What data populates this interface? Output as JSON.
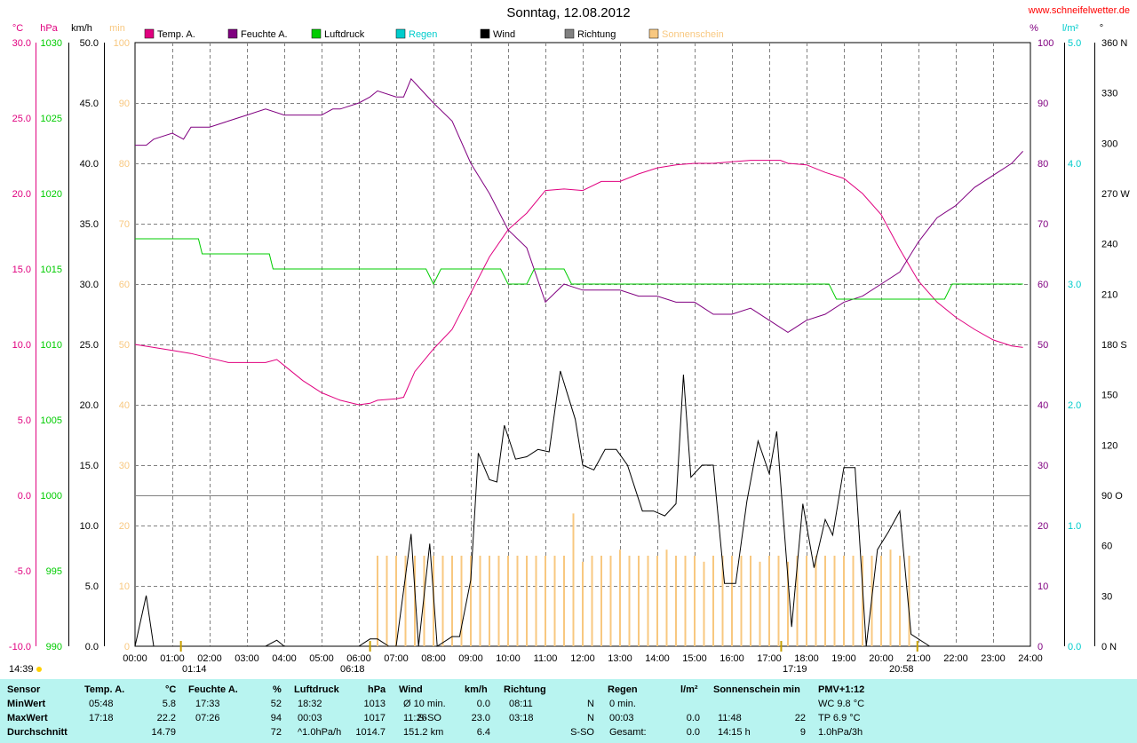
{
  "header": {
    "title": "Sonntag, 12.08.2012",
    "site": "www.schneifelwetter.de"
  },
  "colors": {
    "temp": "#e0007f",
    "hum": "#800080",
    "press": "#00cc00",
    "rain": "#00cccc",
    "wind": "#000000",
    "dir": "#808080",
    "sun": "#f8c880",
    "table_bg": "#b8f4f0"
  },
  "axes": {
    "temp": {
      "unit": "°C",
      "ticks": [
        "30.0",
        "25.0",
        "20.0",
        "15.0",
        "10.0",
        "5.0",
        "0.0",
        "-5.0",
        "-10.0"
      ]
    },
    "press": {
      "unit": "hPa",
      "ticks": [
        "1030",
        "1025",
        "1020",
        "1015",
        "1010",
        "1005",
        "1000",
        "995",
        "990"
      ]
    },
    "wind": {
      "unit": "km/h",
      "ticks": [
        "50.0",
        "45.0",
        "40.0",
        "35.0",
        "30.0",
        "25.0",
        "20.0",
        "15.0",
        "10.0",
        "5.0",
        "0.0"
      ]
    },
    "sun": {
      "unit": "min",
      "ticks": [
        "100",
        "90",
        "80",
        "70",
        "60",
        "50",
        "40",
        "30",
        "20",
        "10",
        "0"
      ]
    },
    "hum": {
      "unit": "%",
      "ticks": [
        "100",
        "90",
        "80",
        "70",
        "60",
        "50",
        "40",
        "30",
        "20",
        "10",
        "0"
      ]
    },
    "rain": {
      "unit": "l/m²",
      "ticks": [
        "5.0",
        "4.0",
        "3.0",
        "2.0",
        "1.0",
        "0.0"
      ]
    },
    "dir": {
      "unit": "°",
      "ticks": [
        "360 N",
        "330",
        "300",
        "270 W",
        "240",
        "210",
        "180 S",
        "150",
        "120",
        "90 O",
        "60",
        "30",
        "0 N"
      ]
    },
    "time": [
      "00:00",
      "01:00",
      "02:00",
      "03:00",
      "04:00",
      "05:00",
      "06:00",
      "07:00",
      "08:00",
      "09:00",
      "10:00",
      "11:00",
      "12:00",
      "13:00",
      "14:00",
      "15:00",
      "16:00",
      "17:00",
      "18:00",
      "19:00",
      "20:00",
      "21:00",
      "22:00",
      "23:00",
      "24:00"
    ]
  },
  "legend": [
    "Temp. A.",
    "Feuchte A.",
    "Luftdruck",
    "Regen",
    "Wind",
    "Richtung",
    "Sonnenschein"
  ],
  "markers": {
    "time_left": "14:39",
    "sunrise": "06:18",
    "sunset": "20:58",
    "moonrise": "01:14",
    "moonset": "17:19"
  },
  "chart_data": {
    "type": "line",
    "x_unit": "hour",
    "series": [
      {
        "name": "Temp. A.",
        "unit": "°C",
        "points": [
          [
            0,
            10.0
          ],
          [
            0.5,
            9.8
          ],
          [
            1,
            9.6
          ],
          [
            1.5,
            9.4
          ],
          [
            2,
            9.1
          ],
          [
            2.5,
            8.8
          ],
          [
            3,
            8.8
          ],
          [
            3.5,
            8.8
          ],
          [
            3.8,
            9.0
          ],
          [
            4,
            8.6
          ],
          [
            4.5,
            7.6
          ],
          [
            5,
            6.8
          ],
          [
            5.5,
            6.3
          ],
          [
            6,
            6.0
          ],
          [
            6.3,
            6.1
          ],
          [
            6.5,
            6.3
          ],
          [
            7,
            6.4
          ],
          [
            7.2,
            6.5
          ],
          [
            7.5,
            8.2
          ],
          [
            8,
            9.7
          ],
          [
            8.5,
            11.0
          ],
          [
            9,
            13.4
          ],
          [
            9.5,
            15.8
          ],
          [
            10,
            17.6
          ],
          [
            10.5,
            18.7
          ],
          [
            11,
            20.2
          ],
          [
            11.5,
            20.3
          ],
          [
            12,
            20.2
          ],
          [
            12.5,
            20.8
          ],
          [
            13,
            20.8
          ],
          [
            13.5,
            21.3
          ],
          [
            14,
            21.7
          ],
          [
            14.5,
            21.9
          ],
          [
            15,
            22.0
          ],
          [
            15.5,
            22.0
          ],
          [
            16,
            22.1
          ],
          [
            16.5,
            22.2
          ],
          [
            17,
            22.2
          ],
          [
            17.3,
            22.2
          ],
          [
            17.5,
            22.0
          ],
          [
            18,
            21.9
          ],
          [
            18.5,
            21.4
          ],
          [
            19,
            21.0
          ],
          [
            19.5,
            20.0
          ],
          [
            20,
            18.6
          ],
          [
            20.5,
            16.3
          ],
          [
            21,
            14.2
          ],
          [
            21.5,
            12.8
          ],
          [
            22,
            11.8
          ],
          [
            22.5,
            11.0
          ],
          [
            23,
            10.3
          ],
          [
            23.5,
            9.9
          ],
          [
            23.8,
            9.8
          ]
        ]
      },
      {
        "name": "Feuchte A.",
        "unit": "%",
        "points": [
          [
            0,
            83
          ],
          [
            0.3,
            83
          ],
          [
            0.5,
            84
          ],
          [
            1,
            85
          ],
          [
            1.3,
            84
          ],
          [
            1.5,
            86
          ],
          [
            2,
            86
          ],
          [
            2.5,
            87
          ],
          [
            3,
            88
          ],
          [
            3.5,
            89
          ],
          [
            4,
            88
          ],
          [
            4.5,
            88
          ],
          [
            5,
            88
          ],
          [
            5.3,
            89
          ],
          [
            5.5,
            89
          ],
          [
            6,
            90
          ],
          [
            6.3,
            91
          ],
          [
            6.5,
            92
          ],
          [
            7,
            91
          ],
          [
            7.2,
            91
          ],
          [
            7.4,
            94
          ],
          [
            7.7,
            92
          ],
          [
            8,
            90
          ],
          [
            8.5,
            87
          ],
          [
            9,
            80
          ],
          [
            9.5,
            75
          ],
          [
            10,
            69
          ],
          [
            10.5,
            66
          ],
          [
            11,
            57
          ],
          [
            11.5,
            60
          ],
          [
            12,
            59
          ],
          [
            12.5,
            59
          ],
          [
            13,
            59
          ],
          [
            13.5,
            58
          ],
          [
            14,
            58
          ],
          [
            14.5,
            57
          ],
          [
            15,
            57
          ],
          [
            15.5,
            55
          ],
          [
            16,
            55
          ],
          [
            16.5,
            56
          ],
          [
            17,
            54
          ],
          [
            17.5,
            52
          ],
          [
            18,
            54
          ],
          [
            18.5,
            55
          ],
          [
            19,
            57
          ],
          [
            19.5,
            58
          ],
          [
            20,
            60
          ],
          [
            20.5,
            62
          ],
          [
            21,
            67
          ],
          [
            21.5,
            71
          ],
          [
            22,
            73
          ],
          [
            22.5,
            76
          ],
          [
            23,
            78
          ],
          [
            23.5,
            80
          ],
          [
            23.8,
            82
          ]
        ]
      },
      {
        "name": "Luftdruck",
        "unit": "hPa",
        "points": [
          [
            0,
            1017
          ],
          [
            1.7,
            1017
          ],
          [
            1.8,
            1016
          ],
          [
            3.6,
            1016
          ],
          [
            3.7,
            1015
          ],
          [
            7.8,
            1015
          ],
          [
            8,
            1014
          ],
          [
            8.2,
            1015
          ],
          [
            9.8,
            1015
          ],
          [
            10,
            1014
          ],
          [
            10.5,
            1014
          ],
          [
            10.7,
            1015
          ],
          [
            11.5,
            1015
          ],
          [
            11.7,
            1014
          ],
          [
            18.6,
            1014
          ],
          [
            18.8,
            1013
          ],
          [
            21.7,
            1013
          ],
          [
            21.9,
            1014
          ],
          [
            23.8,
            1014
          ]
        ]
      },
      {
        "name": "Wind",
        "unit": "km/h",
        "points": [
          [
            0,
            0
          ],
          [
            0.3,
            4.2
          ],
          [
            0.5,
            0
          ],
          [
            3.5,
            0
          ],
          [
            3.8,
            0.5
          ],
          [
            4,
            0
          ],
          [
            6,
            0
          ],
          [
            6.3,
            0.6
          ],
          [
            6.5,
            0.6
          ],
          [
            6.8,
            0
          ],
          [
            7,
            0
          ],
          [
            7.4,
            9.3
          ],
          [
            7.6,
            0
          ],
          [
            7.9,
            8.5
          ],
          [
            8.1,
            0
          ],
          [
            8.5,
            0.8
          ],
          [
            8.7,
            0.8
          ],
          [
            9,
            5.5
          ],
          [
            9.2,
            16
          ],
          [
            9.5,
            13.8
          ],
          [
            9.7,
            13.6
          ],
          [
            9.9,
            18.3
          ],
          [
            10.2,
            15.5
          ],
          [
            10.5,
            15.7
          ],
          [
            10.8,
            16.3
          ],
          [
            11.1,
            16.1
          ],
          [
            11.4,
            22.8
          ],
          [
            11.8,
            18.8
          ],
          [
            12,
            15.0
          ],
          [
            12.3,
            14.6
          ],
          [
            12.6,
            16.3
          ],
          [
            12.9,
            16.3
          ],
          [
            13.2,
            15.0
          ],
          [
            13.6,
            11.2
          ],
          [
            13.9,
            11.2
          ],
          [
            14.2,
            10.8
          ],
          [
            14.5,
            11.8
          ],
          [
            14.7,
            22.5
          ],
          [
            14.9,
            14.0
          ],
          [
            15.2,
            15.0
          ],
          [
            15.5,
            15.0
          ],
          [
            15.8,
            5.2
          ],
          [
            16.1,
            5.2
          ],
          [
            16.4,
            12.0
          ],
          [
            16.7,
            17.0
          ],
          [
            17,
            14.3
          ],
          [
            17.2,
            17.8
          ],
          [
            17.6,
            1.6
          ],
          [
            17.9,
            11.8
          ],
          [
            18.2,
            6.5
          ],
          [
            18.5,
            10.5
          ],
          [
            18.7,
            9.2
          ],
          [
            19,
            14.8
          ],
          [
            19.3,
            14.8
          ],
          [
            19.6,
            0
          ],
          [
            19.9,
            8.0
          ],
          [
            20.2,
            9.5
          ],
          [
            20.5,
            11.2
          ],
          [
            20.8,
            1.0
          ],
          [
            21.3,
            0
          ]
        ]
      },
      {
        "name": "Sonnenschein",
        "unit": "min",
        "type": "bar",
        "points": [
          [
            6.5,
            15
          ],
          [
            6.75,
            15
          ],
          [
            7,
            15
          ],
          [
            7.25,
            15
          ],
          [
            7.5,
            15
          ],
          [
            7.75,
            15
          ],
          [
            8,
            15
          ],
          [
            8.25,
            15
          ],
          [
            8.5,
            15
          ],
          [
            8.75,
            15
          ],
          [
            9,
            15
          ],
          [
            9.25,
            15
          ],
          [
            9.5,
            15
          ],
          [
            9.75,
            15
          ],
          [
            10,
            15
          ],
          [
            10.25,
            15
          ],
          [
            10.5,
            15
          ],
          [
            10.75,
            15
          ],
          [
            11,
            15
          ],
          [
            11.25,
            15
          ],
          [
            11.5,
            15
          ],
          [
            11.75,
            22
          ],
          [
            12,
            14
          ],
          [
            12.25,
            15
          ],
          [
            12.5,
            15
          ],
          [
            12.75,
            15
          ],
          [
            13,
            16
          ],
          [
            13.25,
            15
          ],
          [
            13.5,
            15
          ],
          [
            13.75,
            15
          ],
          [
            14,
            15
          ],
          [
            14.25,
            16
          ],
          [
            14.5,
            15
          ],
          [
            14.75,
            15
          ],
          [
            15,
            15
          ],
          [
            15.25,
            14
          ],
          [
            15.5,
            15
          ],
          [
            15.75,
            15
          ],
          [
            16,
            15
          ],
          [
            16.25,
            15
          ],
          [
            16.5,
            15
          ],
          [
            16.75,
            14
          ],
          [
            17,
            15
          ],
          [
            17.25,
            15
          ],
          [
            17.5,
            14
          ],
          [
            17.75,
            15
          ],
          [
            18,
            15
          ],
          [
            18.25,
            15
          ],
          [
            18.5,
            15
          ],
          [
            18.75,
            15
          ],
          [
            19,
            15
          ],
          [
            19.25,
            15
          ],
          [
            19.5,
            15
          ],
          [
            19.75,
            15
          ],
          [
            20,
            15
          ],
          [
            20.25,
            16
          ],
          [
            20.5,
            15
          ],
          [
            20.75,
            15
          ]
        ]
      }
    ]
  },
  "table": {
    "headers": [
      "Sensor",
      "Temp. A.",
      "°C",
      "Feuchte A.",
      "%",
      "Luftdruck",
      "hPa",
      "Wind",
      "km/h",
      "Richtung",
      "Regen",
      "l/m²",
      "Sonnenschein min",
      "PMV+1:12"
    ],
    "rows": [
      {
        "label": "MinWert",
        "t_time": "05:48",
        "t_val": "5.8",
        "h_time": "17:33",
        "h_val": "52",
        "p_time": "18:32",
        "p_val": "1013",
        "w_time": "Ø 10 min.",
        "w_dir": "",
        "w_val": "0.0",
        "r_time": "08:11",
        "r_val": "N",
        "rain_a": "0 min.",
        "rain_b": "",
        "s_a": "",
        "s_b": "",
        "pmv": "WC 9.8 °C"
      },
      {
        "label": "MaxWert",
        "t_time": "17:18",
        "t_val": "22.2",
        "h_time": "07:26",
        "h_val": "94",
        "p_time": "00:03",
        "p_val": "1017",
        "w_time": "11:26",
        "w_dir": "S-SO",
        "w_val": "23.0",
        "r_time": "03:18",
        "r_val": "N",
        "rain_a": "00:03",
        "rain_b": "0.0",
        "s_a": "11:48",
        "s_b": "22",
        "pmv": "TP 6.9 °C"
      },
      {
        "label": "Durchschnitt",
        "t_time": "",
        "t_val": "14.79",
        "h_time": "",
        "h_val": "72",
        "p_time": "^1.0hPa/h",
        "p_val": "1014.7",
        "w_time": "151.2 km",
        "w_dir": "",
        "w_val": "6.4",
        "r_time": "",
        "r_val": "S-SO",
        "rain_a": "Gesamt:",
        "rain_b": "0.0",
        "s_a": "14:15 h",
        "s_b": "9",
        "pmv": "1.0hPa/3h"
      }
    ]
  }
}
